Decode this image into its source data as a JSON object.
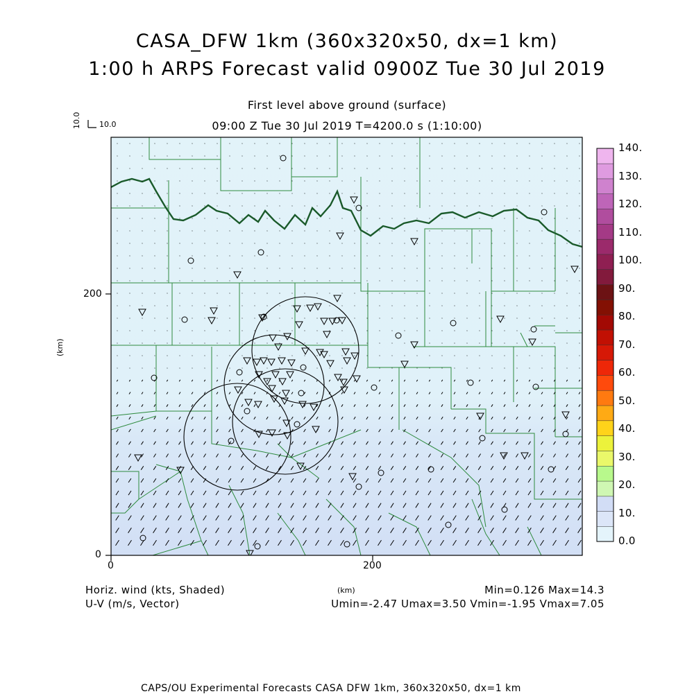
{
  "title": {
    "line1": "CASA_DFW 1km (360x320x50, dx=1 km)",
    "line2": "1:00 h ARPS Forecast valid 0900Z Tue 30 Jul 2019",
    "level": "First level above ground (surface)",
    "time": "09:00 Z Tue 30 Jul 2019    T=4200.0 s (1:10:00)"
  },
  "ref_vector": {
    "u_label": "10.0",
    "v_label": "10.0"
  },
  "axes": {
    "x_ticks": [
      "0",
      "200"
    ],
    "y_ticks": [
      "0",
      "200"
    ],
    "x_label": "(km)",
    "y_label": "(km)",
    "x_range": [
      0,
      360
    ],
    "y_range": [
      0,
      320
    ]
  },
  "colorbar": {
    "levels": [
      "0.0",
      "10.",
      "20.",
      "30.",
      "40.",
      "50.",
      "60.",
      "70.",
      "80.",
      "90.",
      "100.",
      "110.",
      "120.",
      "130.",
      "140."
    ],
    "colors": [
      "#e4f4fb",
      "#dce6f8",
      "#d2ddf6",
      "#cff7b3",
      "#b8f98c",
      "#eaf86a",
      "#ecf23b",
      "#ffd31a",
      "#ffaa14",
      "#ff7a10",
      "#ff4a0c",
      "#ee2708",
      "#d61806",
      "#c11003",
      "#a20904",
      "#831003",
      "#6c1214",
      "#821a3c",
      "#8f1f52",
      "#9b2a6b",
      "#a43a86",
      "#b04d9e",
      "#be65b8",
      "#cf82ce",
      "#df9be0",
      "#efb5ee"
    ]
  },
  "footer": {
    "left1": "Horiz. wind (kts, Shaded)",
    "left2": "U-V (m/s, Vector)",
    "center": "(km)",
    "right1": "Min=0.126 Max=14.3",
    "right2": "Umin=-2.47 Umax=3.50 Vmin=-1.95 Vmax=7.05",
    "bottom": "CAPS/OU Experimental Forecasts  CASA DFW 1km, 360x320x50, dx=1 km"
  },
  "colors": {
    "county_line": "#2e8b3e",
    "state_line": "#1a5a2a",
    "field_light": "#e2f3f9",
    "field_mid": "#d4e2f5"
  }
}
